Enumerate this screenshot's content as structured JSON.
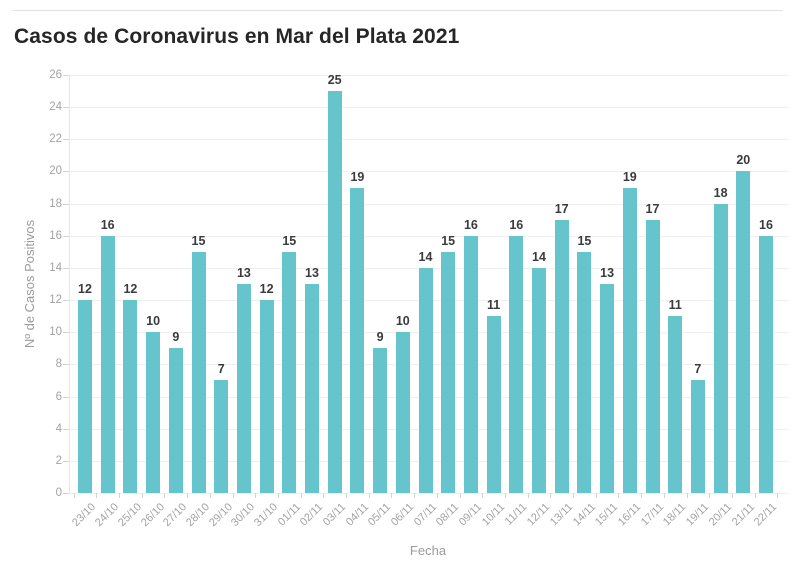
{
  "chart_data": {
    "type": "bar",
    "title": "Casos de Coronavirus en Mar del Plata 2021",
    "xlabel": "Fecha",
    "ylabel": "Nº de Casos Positivos",
    "categories": [
      "23/10",
      "24/10",
      "25/10",
      "26/10",
      "27/10",
      "28/10",
      "29/10",
      "30/10",
      "31/10",
      "01/11",
      "02/11",
      "03/11",
      "04/11",
      "05/11",
      "06/11",
      "07/11",
      "08/11",
      "09/11",
      "10/11",
      "11/11",
      "12/11",
      "13/11",
      "14/11",
      "15/11",
      "16/11",
      "17/11",
      "18/11",
      "19/11",
      "20/11",
      "21/11",
      "22/11"
    ],
    "values": [
      12,
      16,
      12,
      10,
      9,
      15,
      7,
      13,
      12,
      15,
      13,
      25,
      19,
      9,
      10,
      14,
      15,
      16,
      11,
      16,
      14,
      17,
      15,
      13,
      19,
      17,
      11,
      7,
      18,
      20,
      16
    ],
    "ylim": [
      0,
      26
    ],
    "ytick_step": 2,
    "grid": true,
    "legend": "none",
    "value_labels": true,
    "colors": {
      "bar": "#66c5cc",
      "value_label": "#3b3b3b",
      "axis_text": "#a3a3a3",
      "axis_title": "#9b9b9b",
      "grid": "#efefef",
      "tick": "#d4d4d4",
      "axis_line": "#e6e6e6",
      "title": "#262626",
      "top_rule": "#e2e2e2"
    }
  }
}
